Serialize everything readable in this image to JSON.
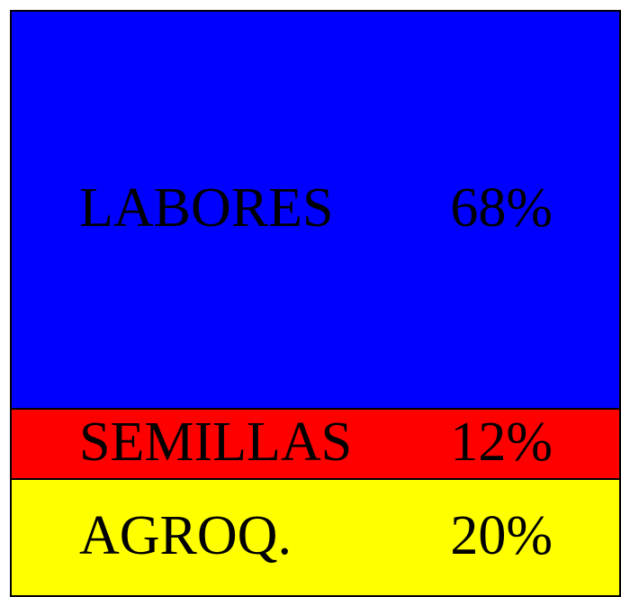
{
  "chart_data": {
    "type": "bar",
    "stacked": true,
    "series": [
      {
        "name": "AGROQ.",
        "color": "#ffff00",
        "values": [
          20
        ],
        "value_labels": [
          "20%"
        ]
      },
      {
        "name": "SEMILLAS",
        "color": "#ff0000",
        "values": [
          12
        ],
        "value_labels": [
          "12%"
        ]
      },
      {
        "name": "LABORES",
        "color": "#0000ff",
        "values": [
          68
        ],
        "value_labels": [
          "68%"
        ]
      }
    ]
  }
}
